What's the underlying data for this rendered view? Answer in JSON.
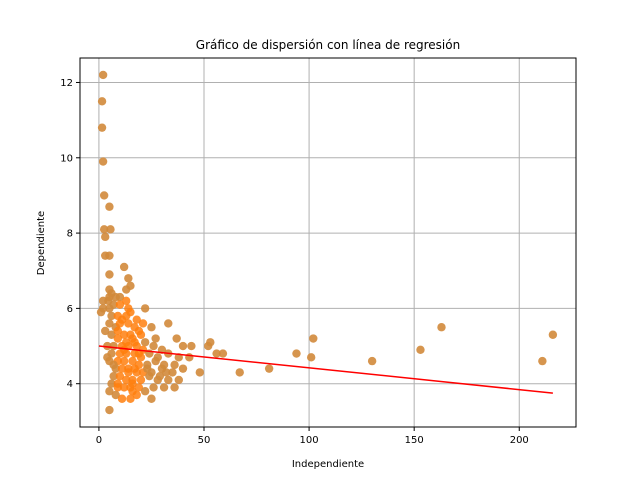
{
  "chart_data": {
    "type": "scatter",
    "title": "Gráfico de dispersión con línea de regresión",
    "xlabel": "Independiente",
    "ylabel": "Dependiente",
    "xlim": [
      -9,
      227
    ],
    "ylim": [
      2.85,
      12.65
    ],
    "xticks": [
      0,
      50,
      100,
      150,
      200
    ],
    "yticks": [
      4,
      6,
      8,
      10,
      12
    ],
    "grid": true,
    "legend": "none",
    "colors": {
      "points": "#d2893b",
      "points_dense": "#ff7f0e",
      "regression": "#ff0000",
      "grid": "#b0b0b0"
    },
    "regression_line": {
      "x": [
        0,
        216
      ],
      "y": [
        5.0,
        3.75
      ]
    },
    "series": [
      {
        "points": [
          [
            2,
            12.2
          ],
          [
            1.5,
            11.5
          ],
          [
            1.5,
            10.8
          ],
          [
            2,
            9.9
          ],
          [
            2.5,
            9
          ],
          [
            5,
            8.7
          ],
          [
            2.5,
            8.1
          ],
          [
            5.5,
            8.1
          ],
          [
            3,
            7.9
          ],
          [
            3,
            7.4
          ],
          [
            5,
            7.4
          ],
          [
            5,
            6.9
          ],
          [
            12,
            7.1
          ],
          [
            15,
            6.6
          ],
          [
            5,
            6.5
          ],
          [
            6,
            6.4
          ],
          [
            5,
            6.3
          ],
          [
            8,
            6.3
          ],
          [
            2,
            6.2
          ],
          [
            4.5,
            6.2
          ],
          [
            10,
            6.3
          ],
          [
            13,
            6.5
          ],
          [
            7,
            6.1
          ],
          [
            10,
            6.1
          ],
          [
            13,
            6.2
          ],
          [
            2,
            6
          ],
          [
            5,
            6
          ],
          [
            14,
            6
          ],
          [
            22,
            6
          ],
          [
            1,
            5.9
          ],
          [
            6,
            5.8
          ],
          [
            9,
            5.8
          ],
          [
            11,
            5.7
          ],
          [
            15,
            5.9
          ],
          [
            18,
            5.7
          ],
          [
            5,
            5.6
          ],
          [
            8,
            5.5
          ],
          [
            10,
            5.6
          ],
          [
            14,
            5.6
          ],
          [
            17,
            5.5
          ],
          [
            19,
            5.4
          ],
          [
            25,
            5.5
          ],
          [
            33,
            5.6
          ],
          [
            3,
            5.4
          ],
          [
            6,
            5.3
          ],
          [
            12,
            5.3
          ],
          [
            15,
            5.3
          ],
          [
            20,
            5.3
          ],
          [
            9,
            5.2
          ],
          [
            13,
            5.1
          ],
          [
            16,
            5.2
          ],
          [
            22,
            5.1
          ],
          [
            27,
            5.2
          ],
          [
            37,
            5.2
          ],
          [
            4,
            5
          ],
          [
            7,
            5
          ],
          [
            11,
            5
          ],
          [
            14,
            5
          ],
          [
            18,
            5
          ],
          [
            21,
            4.9
          ],
          [
            26,
            5
          ],
          [
            30,
            4.9
          ],
          [
            40,
            5
          ],
          [
            44,
            5
          ],
          [
            6,
            4.8
          ],
          [
            10,
            4.8
          ],
          [
            13,
            4.8
          ],
          [
            17,
            4.8
          ],
          [
            20,
            4.7
          ],
          [
            24,
            4.8
          ],
          [
            28,
            4.7
          ],
          [
            33,
            4.8
          ],
          [
            38,
            4.7
          ],
          [
            43,
            4.7
          ],
          [
            5,
            4.6
          ],
          [
            9,
            4.6
          ],
          [
            12,
            4.6
          ],
          [
            16,
            4.6
          ],
          [
            19,
            4.5
          ],
          [
            23,
            4.5
          ],
          [
            27,
            4.6
          ],
          [
            31,
            4.5
          ],
          [
            36,
            4.5
          ],
          [
            8,
            4.4
          ],
          [
            11,
            4.4
          ],
          [
            14,
            4.4
          ],
          [
            18,
            4.3
          ],
          [
            21,
            4.3
          ],
          [
            25,
            4.3
          ],
          [
            30,
            4.4
          ],
          [
            35,
            4.3
          ],
          [
            40,
            4.4
          ],
          [
            7,
            4.2
          ],
          [
            10,
            4.2
          ],
          [
            13,
            4.1
          ],
          [
            16,
            4.1
          ],
          [
            20,
            4.1
          ],
          [
            24,
            4.2
          ],
          [
            28,
            4.1
          ],
          [
            33,
            4.1
          ],
          [
            38,
            4.1
          ],
          [
            6,
            4
          ],
          [
            9,
            3.9
          ],
          [
            12,
            3.9
          ],
          [
            15,
            3.9
          ],
          [
            19,
            3.9
          ],
          [
            22,
            3.8
          ],
          [
            26,
            3.9
          ],
          [
            31,
            3.9
          ],
          [
            36,
            3.9
          ],
          [
            5,
            3.8
          ],
          [
            8,
            3.7
          ],
          [
            11,
            3.6
          ],
          [
            15,
            3.6
          ],
          [
            18,
            3.7
          ],
          [
            25,
            3.6
          ],
          [
            5,
            3.3
          ],
          [
            7,
            4.5
          ],
          [
            9,
            5.4
          ],
          [
            4,
            4.7
          ],
          [
            16,
            4
          ],
          [
            17,
            4.4
          ],
          [
            19,
            4.8
          ],
          [
            21,
            5.6
          ],
          [
            23,
            4.4
          ],
          [
            29,
            4.2
          ],
          [
            32,
            4.3
          ],
          [
            14,
            6.8
          ],
          [
            16,
            3.8
          ],
          [
            9,
            4
          ],
          [
            13,
            5.8
          ],
          [
            12,
            4.9
          ],
          [
            17,
            5.1
          ],
          [
            14,
            4.3
          ],
          [
            48,
            4.3
          ],
          [
            52,
            5.0
          ],
          [
            53,
            5.1
          ],
          [
            56,
            4.8
          ],
          [
            59,
            4.8
          ],
          [
            67,
            4.3
          ],
          [
            81,
            4.4
          ],
          [
            94,
            4.8
          ],
          [
            101,
            4.7
          ],
          [
            102,
            5.2
          ],
          [
            130,
            4.6
          ],
          [
            153,
            4.9
          ],
          [
            163,
            5.5
          ],
          [
            211,
            4.6
          ],
          [
            216,
            5.3
          ]
        ]
      }
    ]
  }
}
